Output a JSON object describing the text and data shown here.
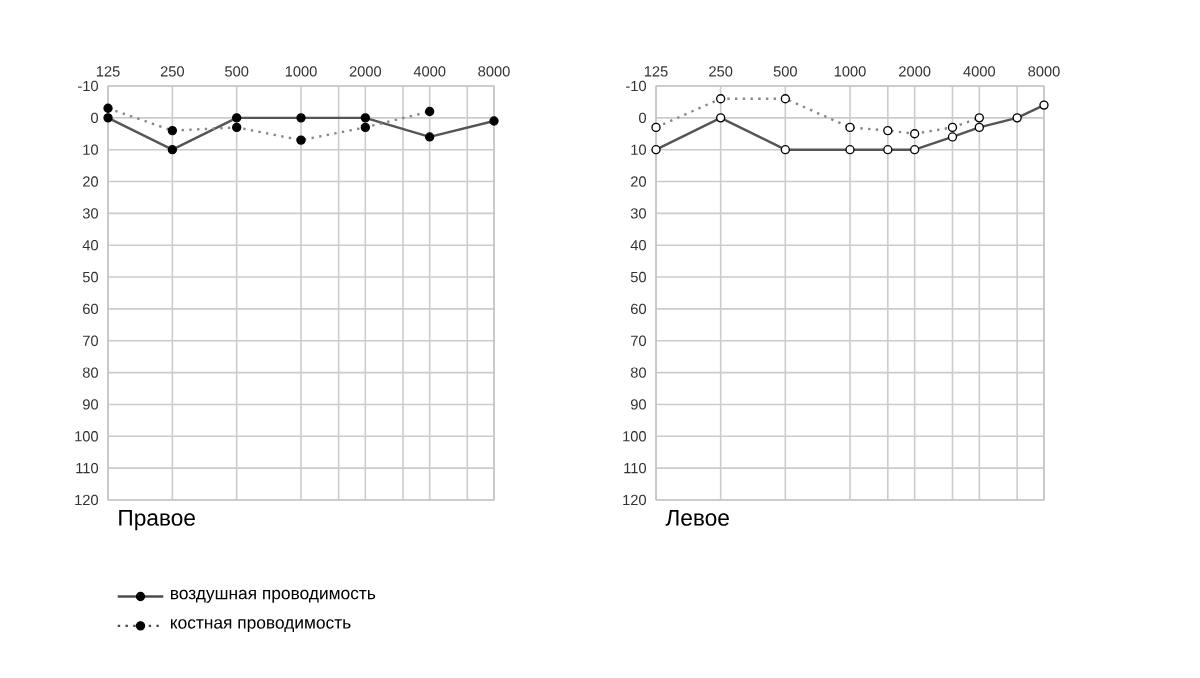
{
  "chart_data": [
    {
      "type": "line",
      "title": "Правое",
      "x": [
        125,
        250,
        500,
        1000,
        2000,
        4000,
        8000
      ],
      "log": "x",
      "xlim": [
        125,
        8000
      ],
      "ylim": [
        120,
        -10
      ],
      "xticks": [
        125,
        250,
        500,
        1000,
        {
          "value": 1500,
          "label": null
        },
        2000,
        {
          "value": 3000,
          "label": null
        },
        4000,
        {
          "value": 6000,
          "label": null
        },
        8000
      ],
      "yticks": [
        -10,
        0,
        10,
        20,
        30,
        40,
        50,
        60,
        70,
        80,
        90,
        100,
        110,
        120
      ],
      "grid": true,
      "marker": "circle",
      "legend": "bottom",
      "series": [
        {
          "name": "воздушная проводимость",
          "color": "#555555",
          "line_style": "solid",
          "values": [
            0,
            10,
            0,
            0,
            0,
            6,
            1
          ]
        },
        {
          "name": "костная проводимость",
          "color": "#888888",
          "line_style": "dotted",
          "values": [
            -3,
            4,
            3,
            7,
            3,
            -2,
            null
          ]
        }
      ]
    },
    {
      "type": "line",
      "title": "Левое",
      "x": [
        125,
        250,
        500,
        1000,
        1500,
        2000,
        3000,
        4000,
        6000,
        8000
      ],
      "log": "x",
      "xlim": [
        125,
        8000
      ],
      "ylim": [
        120,
        -10
      ],
      "xticks": [
        125,
        250,
        500,
        1000,
        {
          "value": 1500,
          "label": null
        },
        2000,
        {
          "value": 3000,
          "label": null
        },
        4000,
        {
          "value": 6000,
          "label": null
        },
        8000
      ],
      "yticks": [
        -10,
        0,
        10,
        20,
        30,
        40,
        50,
        60,
        70,
        80,
        90,
        100,
        110,
        120
      ],
      "grid": true,
      "marker": "circle",
      "series": [
        {
          "color": "#555555",
          "line_style": "solid",
          "values": [
            10,
            0,
            10,
            10,
            10,
            10,
            6,
            3,
            0,
            -4
          ]
        },
        {
          "color": "#888888",
          "line_style": "dotted",
          "values": [
            3,
            -6,
            -6,
            3,
            4,
            5,
            3,
            0,
            null,
            null
          ]
        }
      ]
    }
  ]
}
